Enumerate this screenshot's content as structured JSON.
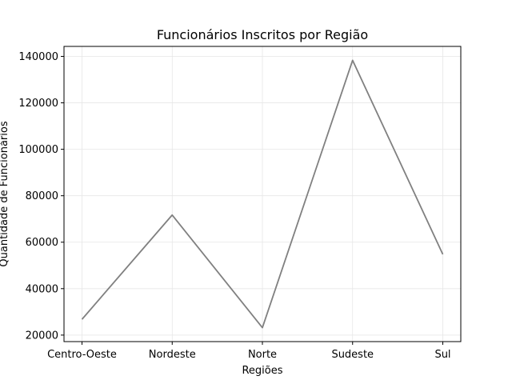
{
  "chart_data": {
    "type": "line",
    "title": "Funcionários Inscritos por Região",
    "xlabel": "Regiões",
    "ylabel": "Quantidade de Funcionários",
    "categories": [
      "Centro-Oeste",
      "Nordeste",
      "Norte",
      "Sudeste",
      "Sul"
    ],
    "series": [
      {
        "values": [
          26800,
          71700,
          23200,
          138300,
          54800
        ],
        "color": "#808080"
      }
    ],
    "ylim": [
      17200,
      144300
    ],
    "yticks": [
      20000,
      40000,
      60000,
      80000,
      100000,
      120000,
      140000
    ],
    "grid": true,
    "legend": "none"
  }
}
